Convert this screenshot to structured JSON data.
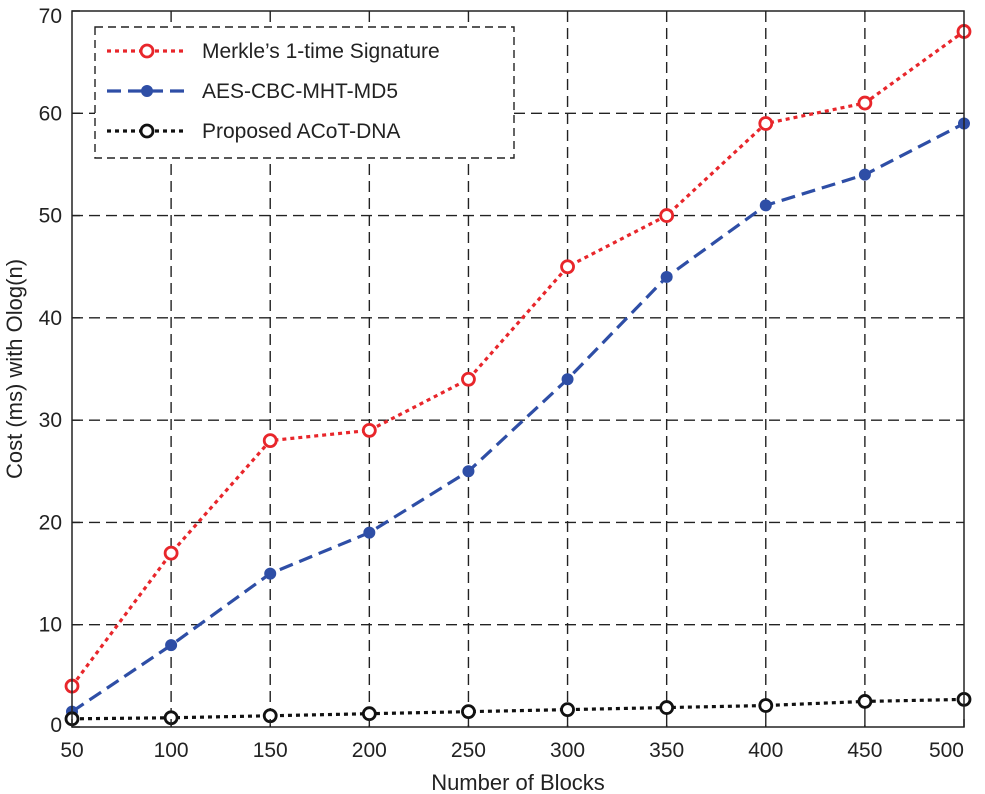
{
  "chart_data": {
    "type": "line",
    "title": "",
    "xlabel": "Number of Blocks",
    "ylabel": "Cost (ms) with Olog(n)",
    "x": [
      50,
      100,
      150,
      200,
      250,
      300,
      350,
      400,
      450,
      500
    ],
    "xlim": [
      50,
      500
    ],
    "ylim": [
      0,
      70
    ],
    "xticks": [
      "50",
      "100",
      "150",
      "200",
      "250",
      "300",
      "350",
      "400",
      "450",
      "500"
    ],
    "yticks": [
      "0",
      "10",
      "20",
      "30",
      "40",
      "50",
      "60",
      "70"
    ],
    "grid": true,
    "legend_position": "top-left",
    "series": [
      {
        "name": "Merkle’s 1-time Signature",
        "values": [
          4,
          17,
          28,
          29,
          34,
          45,
          50,
          59,
          61,
          68
        ],
        "color": "#e8262b",
        "line": "dotted",
        "marker": "open-circle"
      },
      {
        "name": "AES-CBC-MHT-MD5",
        "values": [
          1.5,
          8,
          15,
          19,
          25,
          34,
          44,
          51,
          54,
          59
        ],
        "color": "#2e4ea6",
        "line": "dashed",
        "marker": "filled-circle"
      },
      {
        "name": "Proposed ACoT-DNA",
        "values": [
          0.8,
          0.9,
          1.1,
          1.3,
          1.5,
          1.7,
          1.9,
          2.1,
          2.5,
          2.7
        ],
        "color": "#111111",
        "line": "dotted",
        "marker": "open-circle"
      }
    ]
  }
}
